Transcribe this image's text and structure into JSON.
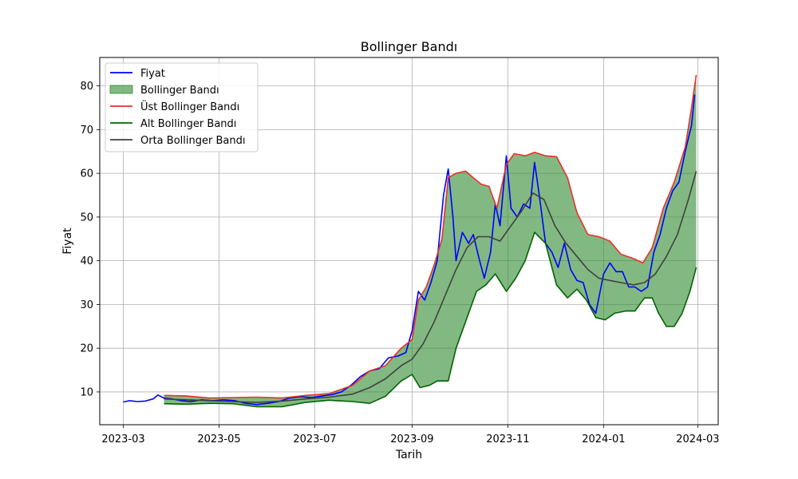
{
  "chart_data": {
    "type": "line",
    "title": "Bollinger Bandı",
    "xlabel": "Tarih",
    "ylabel": "Fiyat",
    "x_ticks": [
      "2023-03",
      "2023-05",
      "2023-07",
      "2023-09",
      "2023-11",
      "2024-01",
      "2024-03"
    ],
    "y_ticks": [
      10,
      20,
      30,
      40,
      50,
      60,
      70,
      80
    ],
    "xlim": [
      "2023-02-14",
      "2024-03-14"
    ],
    "ylim": [
      2.5,
      86.5
    ],
    "grid": true,
    "legend_position": "upper-left",
    "colors": {
      "price": "#0000ff",
      "band_fill": "#2e8b2e",
      "upper": "#e8302a",
      "lower": "#006400",
      "middle": "#404040"
    },
    "legend": [
      {
        "key": "price",
        "label": "Fiyat",
        "kind": "line"
      },
      {
        "key": "band",
        "label": "Bollinger Bandı",
        "kind": "patch"
      },
      {
        "key": "upper",
        "label": "Üst Bollinger Bandı",
        "kind": "line"
      },
      {
        "key": "lower",
        "label": "Alt Bollinger Bandı",
        "kind": "line"
      },
      {
        "key": "middle",
        "label": "Orta Bollinger Bandı",
        "kind": "line"
      }
    ],
    "series": [
      {
        "key": "price",
        "name": "Fiyat",
        "points": [
          [
            "2023-03-01",
            7.7
          ],
          [
            "2023-03-05",
            8.0
          ],
          [
            "2023-03-10",
            7.8
          ],
          [
            "2023-03-15",
            7.9
          ],
          [
            "2023-03-20",
            8.4
          ],
          [
            "2023-03-23",
            9.3
          ],
          [
            "2023-03-27",
            8.6
          ],
          [
            "2023-04-01",
            8.4
          ],
          [
            "2023-04-07",
            8.0
          ],
          [
            "2023-04-13",
            7.8
          ],
          [
            "2023-04-20",
            8.2
          ],
          [
            "2023-04-27",
            8.0
          ],
          [
            "2023-05-04",
            8.2
          ],
          [
            "2023-05-11",
            8.0
          ],
          [
            "2023-05-18",
            7.4
          ],
          [
            "2023-05-25",
            7.1
          ],
          [
            "2023-06-01",
            7.4
          ],
          [
            "2023-06-08",
            7.8
          ],
          [
            "2023-06-15",
            8.6
          ],
          [
            "2023-06-22",
            8.9
          ],
          [
            "2023-06-29",
            8.7
          ],
          [
            "2023-07-06",
            9.1
          ],
          [
            "2023-07-12",
            9.4
          ],
          [
            "2023-07-18",
            10.0
          ],
          [
            "2023-07-24",
            11.5
          ],
          [
            "2023-07-30",
            13.5
          ],
          [
            "2023-08-05",
            14.8
          ],
          [
            "2023-08-11",
            15.3
          ],
          [
            "2023-08-17",
            17.8
          ],
          [
            "2023-08-23",
            18.2
          ],
          [
            "2023-08-28",
            19.0
          ],
          [
            "2023-09-01",
            24.0
          ],
          [
            "2023-09-05",
            33.0
          ],
          [
            "2023-09-09",
            31.0
          ],
          [
            "2023-09-13",
            35.0
          ],
          [
            "2023-09-17",
            40.0
          ],
          [
            "2023-09-21",
            55.0
          ],
          [
            "2023-09-24",
            61.0
          ],
          [
            "2023-09-27",
            50.0
          ],
          [
            "2023-09-29",
            40.0
          ],
          [
            "2023-10-03",
            46.5
          ],
          [
            "2023-10-07",
            44.0
          ],
          [
            "2023-10-10",
            46.0
          ],
          [
            "2023-10-14",
            40.0
          ],
          [
            "2023-10-17",
            36.0
          ],
          [
            "2023-10-21",
            42.0
          ],
          [
            "2023-10-24",
            53.0
          ],
          [
            "2023-10-27",
            48.0
          ],
          [
            "2023-10-31",
            64.0
          ],
          [
            "2023-11-03",
            52.0
          ],
          [
            "2023-11-07",
            50.0
          ],
          [
            "2023-11-11",
            53.0
          ],
          [
            "2023-11-15",
            52.0
          ],
          [
            "2023-11-18",
            62.5
          ],
          [
            "2023-11-21",
            55.0
          ],
          [
            "2023-11-25",
            44.0
          ],
          [
            "2023-11-29",
            42.0
          ],
          [
            "2023-12-03",
            38.5
          ],
          [
            "2023-12-07",
            44.0
          ],
          [
            "2023-12-11",
            38.0
          ],
          [
            "2023-12-15",
            35.5
          ],
          [
            "2023-12-19",
            35.0
          ],
          [
            "2023-12-23",
            30.0
          ],
          [
            "2023-12-27",
            28.0
          ],
          [
            "2024-01-01",
            37.0
          ],
          [
            "2024-01-05",
            39.5
          ],
          [
            "2024-01-09",
            37.5
          ],
          [
            "2024-01-13",
            37.5
          ],
          [
            "2024-01-17",
            34.0
          ],
          [
            "2024-01-21",
            34.0
          ],
          [
            "2024-01-25",
            33.0
          ],
          [
            "2024-01-29",
            34.0
          ],
          [
            "2024-02-02",
            42.0
          ],
          [
            "2024-02-06",
            46.0
          ],
          [
            "2024-02-10",
            52.0
          ],
          [
            "2024-02-14",
            56.0
          ],
          [
            "2024-02-18",
            58.0
          ],
          [
            "2024-02-22",
            65.0
          ],
          [
            "2024-02-26",
            71.0
          ],
          [
            "2024-02-28",
            78.0
          ]
        ]
      },
      {
        "key": "upper",
        "name": "Üst Bollinger Bandı",
        "points": [
          [
            "2023-03-27",
            9.2
          ],
          [
            "2023-04-10",
            9.1
          ],
          [
            "2023-04-25",
            8.6
          ],
          [
            "2023-05-10",
            8.7
          ],
          [
            "2023-05-25",
            8.8
          ],
          [
            "2023-06-10",
            8.6
          ],
          [
            "2023-06-25",
            9.2
          ],
          [
            "2023-07-10",
            9.6
          ],
          [
            "2023-07-25",
            11.5
          ],
          [
            "2023-08-05",
            14.8
          ],
          [
            "2023-08-15",
            16.0
          ],
          [
            "2023-08-25",
            20.0
          ],
          [
            "2023-09-01",
            22.0
          ],
          [
            "2023-09-05",
            31.0
          ],
          [
            "2023-09-10",
            34.0
          ],
          [
            "2023-09-15",
            39.0
          ],
          [
            "2023-09-20",
            45.0
          ],
          [
            "2023-09-24",
            59.0
          ],
          [
            "2023-09-29",
            60.0
          ],
          [
            "2023-10-05",
            60.5
          ],
          [
            "2023-10-10",
            59.0
          ],
          [
            "2023-10-15",
            57.5
          ],
          [
            "2023-10-20",
            57.0
          ],
          [
            "2023-10-25",
            52.0
          ],
          [
            "2023-10-31",
            62.0
          ],
          [
            "2023-11-05",
            64.5
          ],
          [
            "2023-11-12",
            64.0
          ],
          [
            "2023-11-18",
            64.8
          ],
          [
            "2023-11-25",
            64.0
          ],
          [
            "2023-12-02",
            63.8
          ],
          [
            "2023-12-09",
            59.0
          ],
          [
            "2023-12-15",
            51.0
          ],
          [
            "2023-12-22",
            46.0
          ],
          [
            "2023-12-29",
            45.5
          ],
          [
            "2024-01-05",
            44.5
          ],
          [
            "2024-01-12",
            41.5
          ],
          [
            "2024-01-20",
            40.5
          ],
          [
            "2024-01-26",
            39.5
          ],
          [
            "2024-02-01",
            43.0
          ],
          [
            "2024-02-08",
            52.0
          ],
          [
            "2024-02-15",
            58.0
          ],
          [
            "2024-02-22",
            66.0
          ],
          [
            "2024-02-26",
            75.0
          ],
          [
            "2024-02-29",
            82.5
          ]
        ]
      },
      {
        "key": "middle",
        "name": "Orta Bollinger Bandı",
        "points": [
          [
            "2023-03-27",
            8.4
          ],
          [
            "2023-04-10",
            8.2
          ],
          [
            "2023-04-25",
            8.0
          ],
          [
            "2023-05-10",
            7.8
          ],
          [
            "2023-05-25",
            7.6
          ],
          [
            "2023-06-10",
            7.9
          ],
          [
            "2023-06-25",
            8.4
          ],
          [
            "2023-07-10",
            8.8
          ],
          [
            "2023-07-25",
            9.5
          ],
          [
            "2023-08-05",
            11.0
          ],
          [
            "2023-08-15",
            13.0
          ],
          [
            "2023-08-25",
            16.0
          ],
          [
            "2023-09-01",
            17.5
          ],
          [
            "2023-09-08",
            21.0
          ],
          [
            "2023-09-15",
            26.0
          ],
          [
            "2023-09-22",
            32.0
          ],
          [
            "2023-09-29",
            38.0
          ],
          [
            "2023-10-06",
            43.0
          ],
          [
            "2023-10-13",
            45.5
          ],
          [
            "2023-10-20",
            45.5
          ],
          [
            "2023-10-27",
            44.5
          ],
          [
            "2023-11-03",
            48.0
          ],
          [
            "2023-11-10",
            51.5
          ],
          [
            "2023-11-17",
            55.5
          ],
          [
            "2023-11-24",
            54.0
          ],
          [
            "2023-12-01",
            48.0
          ],
          [
            "2023-12-08",
            44.0
          ],
          [
            "2023-12-15",
            41.0
          ],
          [
            "2023-12-22",
            38.0
          ],
          [
            "2023-12-29",
            36.0
          ],
          [
            "2024-01-05",
            35.5
          ],
          [
            "2024-01-12",
            35.0
          ],
          [
            "2024-01-20",
            34.5
          ],
          [
            "2024-01-27",
            35.0
          ],
          [
            "2024-02-03",
            37.0
          ],
          [
            "2024-02-10",
            41.0
          ],
          [
            "2024-02-17",
            46.0
          ],
          [
            "2024-02-24",
            54.0
          ],
          [
            "2024-02-29",
            60.5
          ]
        ]
      },
      {
        "key": "lower",
        "name": "Alt Bollinger Bandı",
        "points": [
          [
            "2023-03-27",
            7.3
          ],
          [
            "2023-04-10",
            7.2
          ],
          [
            "2023-04-25",
            7.4
          ],
          [
            "2023-05-10",
            7.3
          ],
          [
            "2023-05-25",
            6.6
          ],
          [
            "2023-06-10",
            6.6
          ],
          [
            "2023-06-25",
            7.6
          ],
          [
            "2023-07-10",
            8.1
          ],
          [
            "2023-07-25",
            7.8
          ],
          [
            "2023-08-05",
            7.4
          ],
          [
            "2023-08-15",
            9.0
          ],
          [
            "2023-08-25",
            12.5
          ],
          [
            "2023-09-01",
            14.0
          ],
          [
            "2023-09-06",
            11.0
          ],
          [
            "2023-09-12",
            11.5
          ],
          [
            "2023-09-17",
            12.5
          ],
          [
            "2023-09-24",
            12.5
          ],
          [
            "2023-09-29",
            20.0
          ],
          [
            "2023-10-06",
            27.0
          ],
          [
            "2023-10-12",
            33.0
          ],
          [
            "2023-10-18",
            34.5
          ],
          [
            "2023-10-24",
            37.0
          ],
          [
            "2023-10-31",
            33.0
          ],
          [
            "2023-11-06",
            36.0
          ],
          [
            "2023-11-12",
            40.0
          ],
          [
            "2023-11-18",
            46.5
          ],
          [
            "2023-11-25",
            44.0
          ],
          [
            "2023-12-02",
            34.5
          ],
          [
            "2023-12-09",
            31.5
          ],
          [
            "2023-12-15",
            33.5
          ],
          [
            "2023-12-21",
            31.0
          ],
          [
            "2023-12-27",
            27.0
          ],
          [
            "2024-01-02",
            26.5
          ],
          [
            "2024-01-08",
            28.0
          ],
          [
            "2024-01-15",
            28.5
          ],
          [
            "2024-01-21",
            28.5
          ],
          [
            "2024-01-27",
            31.5
          ],
          [
            "2024-02-01",
            31.5
          ],
          [
            "2024-02-05",
            28.0
          ],
          [
            "2024-02-10",
            25.0
          ],
          [
            "2024-02-15",
            25.0
          ],
          [
            "2024-02-20",
            28.0
          ],
          [
            "2024-02-25",
            33.0
          ],
          [
            "2024-02-29",
            38.5
          ]
        ]
      }
    ]
  }
}
